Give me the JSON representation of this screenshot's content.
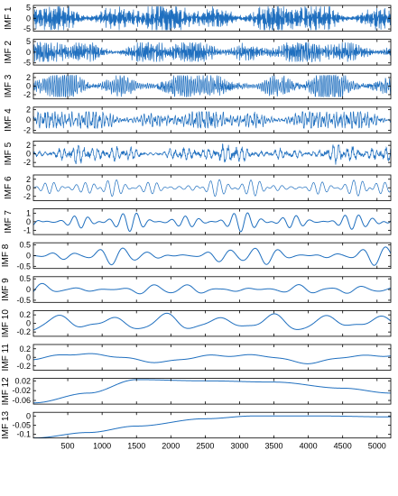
{
  "figure": {
    "title": "",
    "xlabel": ""
  },
  "style": {
    "line_color": "#1f6fbf",
    "axes_color": "#000000",
    "background": "#ffffff"
  },
  "x_axis": {
    "range": [
      0,
      5200
    ],
    "ticks": [
      500,
      1000,
      1500,
      2000,
      2500,
      3000,
      3500,
      4000,
      4500,
      5000
    ],
    "tick_labels": [
      "500",
      "1000",
      "1500",
      "2000",
      "2500",
      "3000",
      "3500",
      "4000",
      "4500",
      "5000"
    ]
  },
  "chart_data": {
    "type": "line",
    "panels": [
      {
        "name": "IMF 1",
        "ylim": [
          -6,
          6
        ],
        "yticks": [
          -5,
          0,
          5
        ],
        "ytick_labels": [
          "-5",
          "0",
          "5"
        ],
        "amplitude": 5.5,
        "dominant_periods": [
          4,
          7
        ]
      },
      {
        "name": "IMF 2",
        "ylim": [
          -6,
          6
        ],
        "yticks": [
          -5,
          0,
          5
        ],
        "ytick_labels": [
          "-5",
          "0",
          "5"
        ],
        "amplitude": 4.5,
        "dominant_periods": [
          9,
          14
        ]
      },
      {
        "name": "IMF 3",
        "ylim": [
          -3,
          3
        ],
        "yticks": [
          -2,
          0,
          2
        ],
        "ytick_labels": [
          "-2",
          "0",
          "2"
        ],
        "amplitude": 2.5,
        "dominant_periods": [
          18,
          28
        ]
      },
      {
        "name": "IMF 4",
        "ylim": [
          -2.5,
          2.5
        ],
        "yticks": [
          -2,
          0,
          2
        ],
        "ytick_labels": [
          "-2",
          "0",
          "2"
        ],
        "amplitude": 1.6,
        "dominant_periods": [
          35,
          50
        ]
      },
      {
        "name": "IMF 5",
        "ylim": [
          -3,
          3
        ],
        "yticks": [
          -2,
          0,
          2
        ],
        "ytick_labels": [
          "-2",
          "0",
          "2"
        ],
        "amplitude": 2.0,
        "dominant_periods": [
          70,
          95
        ]
      },
      {
        "name": "IMF 6",
        "ylim": [
          -3,
          3
        ],
        "yticks": [
          -2,
          0,
          2
        ],
        "ytick_labels": [
          "-2",
          "0",
          "2"
        ],
        "amplitude": 2.4,
        "dominant_periods": [
          115,
          150
        ]
      },
      {
        "name": "IMF 7",
        "ylim": [
          -1.5,
          1.5
        ],
        "yticks": [
          -1,
          0,
          1
        ],
        "ytick_labels": [
          "-1",
          "0",
          "1"
        ],
        "amplitude": 1.2,
        "dominant_periods": [
          180,
          230
        ]
      },
      {
        "name": "IMF 8",
        "ylim": [
          -0.6,
          0.6
        ],
        "yticks": [
          -0.5,
          0,
          0.5
        ],
        "ytick_labels": [
          "-0.5",
          "0",
          "0.5"
        ],
        "amplitude": 0.5,
        "dominant_periods": [
          320,
          380
        ]
      },
      {
        "name": "IMF 9",
        "ylim": [
          -0.6,
          0.6
        ],
        "yticks": [
          -0.5,
          0,
          0.5
        ],
        "ytick_labels": [
          "-0.5",
          "0",
          "0.5"
        ],
        "amplitude": 0.35,
        "dominant_periods": [
          420,
          520
        ]
      },
      {
        "name": "IMF 10",
        "ylim": [
          -0.3,
          0.3
        ],
        "yticks": [
          -0.2,
          0,
          0.2
        ],
        "ytick_labels": [
          "-0.2",
          "0",
          "0.2"
        ],
        "amplitude": 0.25,
        "dominant_periods": [
          780
        ]
      },
      {
        "name": "IMF 11",
        "ylim": [
          -0.3,
          0.3
        ],
        "yticks": [
          -0.2,
          0,
          0.2
        ],
        "ytick_labels": [
          "-0.2",
          "0",
          "0.2"
        ],
        "amplitude": 0.15,
        "dominant_periods": [
          2200
        ]
      },
      {
        "name": "IMF 12",
        "ylim": [
          -0.075,
          0.03
        ],
        "yticks": [
          -0.06,
          -0.02,
          0.02
        ],
        "ytick_labels": [
          "-0.06",
          "-0.02",
          "0.02"
        ],
        "amplitude": 0.0,
        "trend": [
          [
            0,
            -0.07
          ],
          [
            800,
            -0.03
          ],
          [
            1500,
            0.025
          ],
          [
            2500,
            0.02
          ],
          [
            3500,
            0.015
          ],
          [
            4500,
            -0.01
          ],
          [
            5200,
            -0.03
          ]
        ]
      },
      {
        "name": "IMF 13",
        "ylim": [
          -0.12,
          0.02
        ],
        "yticks": [
          -0.1,
          -0.05,
          0
        ],
        "ytick_labels": [
          "-0.1",
          "-0.05",
          "0"
        ],
        "amplitude": 0.0,
        "trend": [
          [
            0,
            -0.12
          ],
          [
            800,
            -0.09
          ],
          [
            1500,
            -0.055
          ],
          [
            2500,
            -0.015
          ],
          [
            3200,
            0.0
          ],
          [
            4200,
            0.0
          ],
          [
            5200,
            -0.005
          ]
        ]
      }
    ]
  }
}
